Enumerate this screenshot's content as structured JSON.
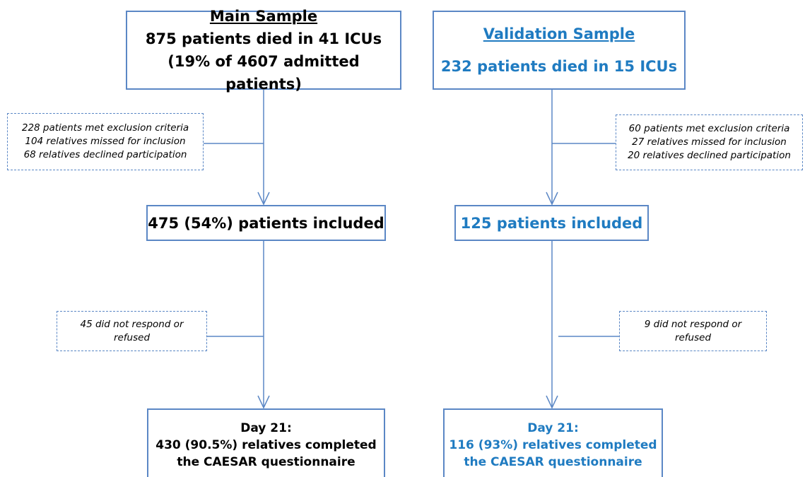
{
  "main": {
    "header": {
      "title": "Main Sample",
      "lines": [
        "875 patients died in 41 ICUs",
        "(19% of 4607 admitted patients)"
      ]
    },
    "exclusions": [
      "228 patients met exclusion criteria",
      "104 relatives missed for inclusion",
      "68 relatives declined participation"
    ],
    "included": "475 (54%) patients included",
    "nonresponse": [
      "45 did not respond or",
      "refused"
    ],
    "final": [
      "Day 21:",
      "430 (90.5%) relatives completed",
      "the CAESAR questionnaire"
    ]
  },
  "validation": {
    "header": {
      "title": "Validation Sample",
      "lines": [
        "232 patients died in 15 ICUs"
      ]
    },
    "exclusions": [
      "60 patients met exclusion criteria",
      "27 relatives missed for inclusion",
      "20 relatives declined participation"
    ],
    "included": "125 patients included",
    "nonresponse": [
      "9 did not respond or",
      "refused"
    ],
    "final": [
      "Day 21:",
      "116 (93%) relatives completed",
      "the CAESAR questionnaire"
    ]
  }
}
